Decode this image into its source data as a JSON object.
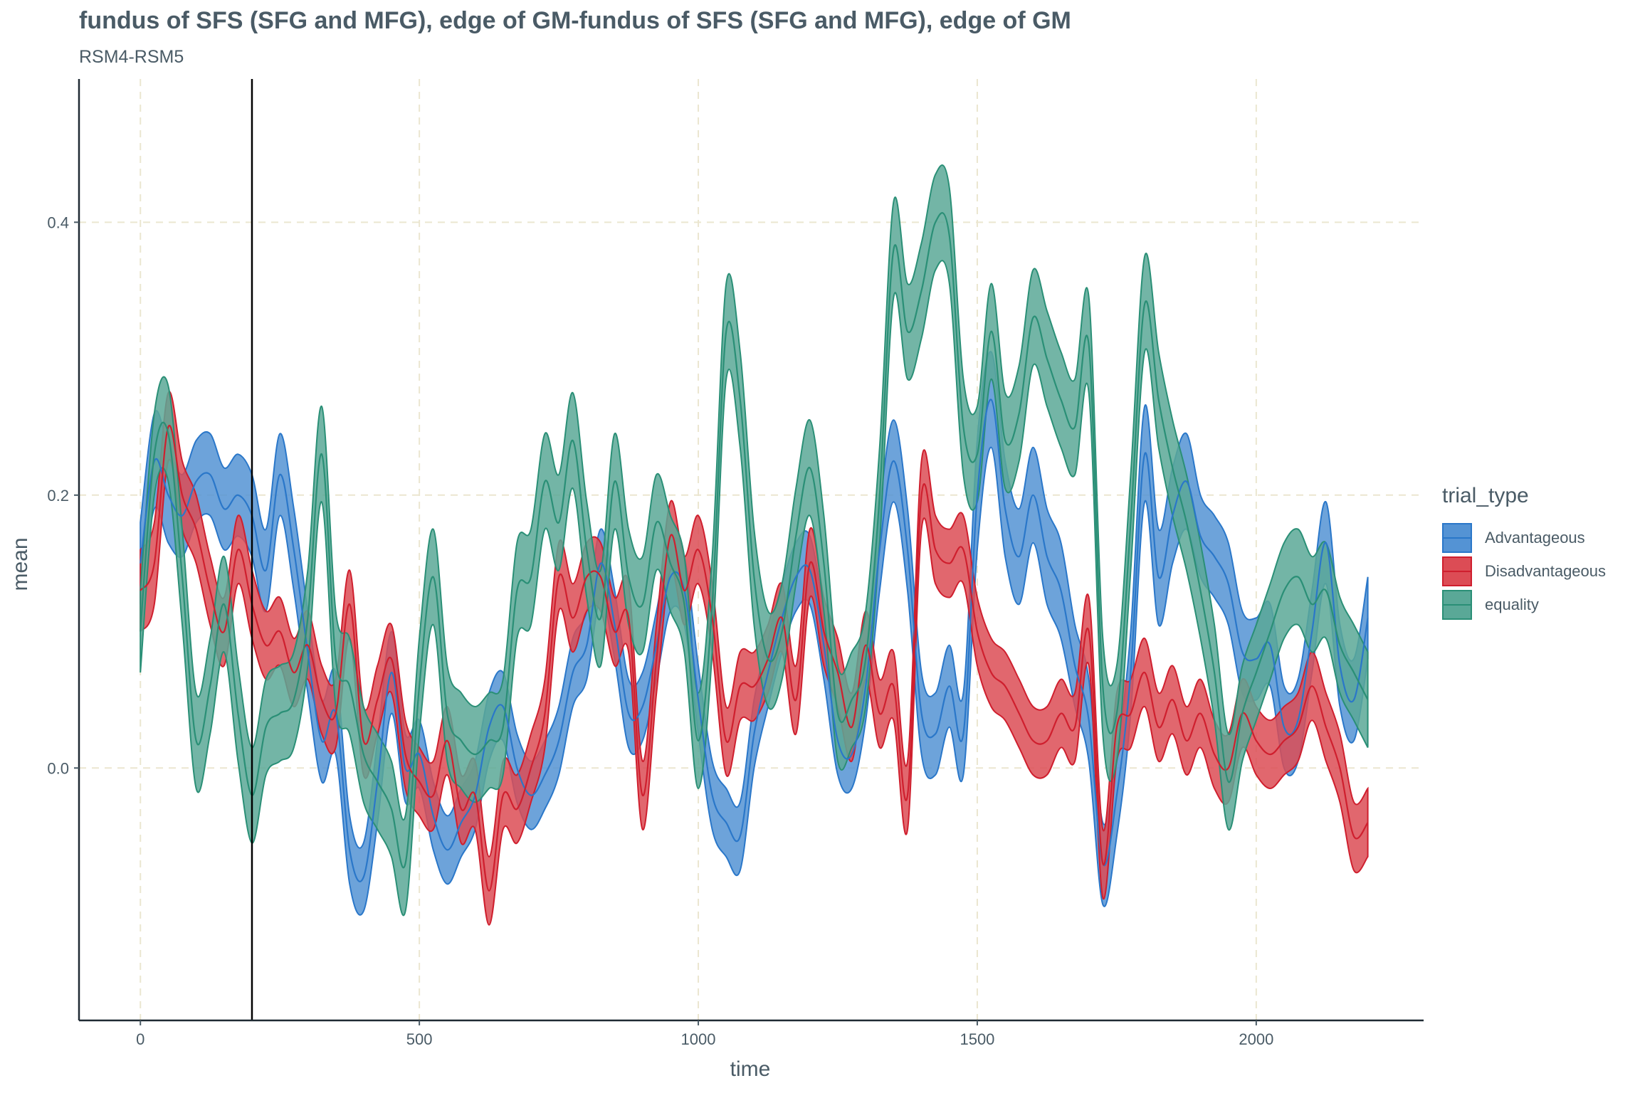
{
  "title": "fundus of SFS (SFG and MFG), edge of GM-fundus of SFS (SFG and MFG), edge of GM",
  "subtitle": "RSM4-RSM5",
  "chart_data": {
    "type": "area",
    "xlabel": "time",
    "ylabel": "mean",
    "xlim": [
      -110,
      2300
    ],
    "ylim": [
      -0.185,
      0.505
    ],
    "x_ticks": [
      0,
      500,
      1000,
      1500,
      2000
    ],
    "y_ticks": [
      0.0,
      0.2,
      0.4
    ],
    "x_tick_labels": [
      "0",
      "500",
      "1000",
      "1500",
      "2000"
    ],
    "y_tick_labels": [
      "0.0",
      "0.2",
      "0.4"
    ],
    "vline_x": 200,
    "grid": true,
    "legend_title": "trial_type",
    "legend_position": "right",
    "x": [
      0,
      25,
      50,
      75,
      100,
      125,
      150,
      175,
      200,
      225,
      250,
      275,
      300,
      325,
      350,
      375,
      400,
      425,
      450,
      475,
      500,
      525,
      550,
      575,
      600,
      625,
      650,
      675,
      700,
      725,
      750,
      775,
      800,
      825,
      850,
      875,
      900,
      925,
      950,
      975,
      1000,
      1025,
      1050,
      1075,
      1100,
      1125,
      1150,
      1175,
      1200,
      1225,
      1250,
      1275,
      1300,
      1325,
      1350,
      1375,
      1400,
      1425,
      1450,
      1475,
      1500,
      1525,
      1550,
      1575,
      1600,
      1625,
      1650,
      1675,
      1700,
      1725,
      1750,
      1775,
      1800,
      1825,
      1850,
      1875,
      1900,
      1925,
      1950,
      1975,
      2000,
      2025,
      2050,
      2075,
      2100,
      2125,
      2150,
      2175,
      2200
    ],
    "series": [
      {
        "name": "Advantageous",
        "color": "#2a77c9",
        "fill": "#5493d4",
        "mean": [
          0.15,
          0.225,
          0.2,
          0.185,
          0.21,
          0.215,
          0.19,
          0.2,
          0.185,
          0.145,
          0.215,
          0.16,
          0.085,
          0.02,
          0.04,
          -0.06,
          -0.08,
          -0.01,
          0.07,
          0.0,
          0.01,
          -0.035,
          -0.06,
          -0.04,
          -0.02,
          0.03,
          0.045,
          0.0,
          -0.02,
          -0.005,
          0.02,
          0.07,
          0.09,
          0.15,
          0.105,
          0.04,
          0.045,
          0.09,
          0.14,
          0.13,
          0.05,
          -0.02,
          -0.04,
          -0.05,
          0.025,
          0.07,
          0.11,
          0.14,
          0.145,
          0.09,
          0.02,
          0.01,
          0.06,
          0.16,
          0.225,
          0.16,
          0.04,
          0.025,
          0.06,
          0.025,
          0.2,
          0.27,
          0.19,
          0.155,
          0.2,
          0.155,
          0.13,
          0.075,
          0.035,
          -0.07,
          -0.02,
          0.07,
          0.23,
          0.14,
          0.185,
          0.21,
          0.17,
          0.155,
          0.135,
          0.085,
          0.08,
          0.09,
          0.03,
          0.035,
          0.1,
          0.165,
          0.075,
          0.05,
          0.11
        ],
        "upper": [
          0.18,
          0.26,
          0.235,
          0.215,
          0.24,
          0.245,
          0.22,
          0.23,
          0.215,
          0.175,
          0.245,
          0.19,
          0.115,
          0.05,
          0.07,
          -0.035,
          -0.055,
          0.02,
          0.1,
          0.025,
          0.035,
          -0.01,
          -0.035,
          -0.015,
          0.005,
          0.055,
          0.07,
          0.025,
          0.005,
          0.02,
          0.045,
          0.095,
          0.115,
          0.175,
          0.13,
          0.065,
          0.07,
          0.115,
          0.165,
          0.155,
          0.075,
          0.005,
          -0.015,
          -0.025,
          0.05,
          0.095,
          0.135,
          0.165,
          0.17,
          0.115,
          0.045,
          0.035,
          0.085,
          0.19,
          0.255,
          0.19,
          0.07,
          0.055,
          0.09,
          0.055,
          0.24,
          0.305,
          0.225,
          0.19,
          0.235,
          0.19,
          0.165,
          0.105,
          0.065,
          -0.04,
          0.01,
          0.1,
          0.265,
          0.175,
          0.22,
          0.245,
          0.2,
          0.185,
          0.165,
          0.115,
          0.11,
          0.12,
          0.06,
          0.065,
          0.13,
          0.195,
          0.105,
          0.08,
          0.14
        ],
        "lower": [
          0.12,
          0.19,
          0.165,
          0.155,
          0.18,
          0.185,
          0.16,
          0.17,
          0.155,
          0.115,
          0.185,
          0.13,
          0.055,
          -0.01,
          0.01,
          -0.085,
          -0.105,
          -0.04,
          0.04,
          -0.025,
          -0.015,
          -0.06,
          -0.085,
          -0.065,
          -0.045,
          0.005,
          0.02,
          -0.025,
          -0.045,
          -0.03,
          -0.005,
          0.045,
          0.065,
          0.125,
          0.08,
          0.015,
          0.02,
          0.065,
          0.115,
          0.105,
          0.025,
          -0.045,
          -0.065,
          -0.075,
          0.0,
          0.045,
          0.085,
          0.115,
          0.12,
          0.065,
          -0.005,
          -0.015,
          0.035,
          0.13,
          0.195,
          0.13,
          0.01,
          -0.005,
          0.03,
          -0.005,
          0.16,
          0.235,
          0.155,
          0.12,
          0.165,
          0.12,
          0.095,
          0.045,
          0.005,
          -0.1,
          -0.05,
          0.04,
          0.195,
          0.105,
          0.15,
          0.175,
          0.14,
          0.125,
          0.105,
          0.055,
          0.05,
          0.06,
          0.0,
          0.005,
          0.07,
          0.135,
          0.045,
          0.02,
          0.08
        ]
      },
      {
        "name": "Disadvantageous",
        "color": "#cf1f2e",
        "fill": "#dc4c55",
        "mean": [
          0.13,
          0.15,
          0.25,
          0.2,
          0.175,
          0.13,
          0.1,
          0.16,
          0.12,
          0.09,
          0.1,
          0.07,
          0.09,
          0.05,
          0.04,
          0.12,
          0.02,
          0.05,
          0.08,
          0.01,
          -0.01,
          -0.02,
          0.02,
          -0.03,
          -0.02,
          -0.09,
          -0.02,
          -0.03,
          0.0,
          0.04,
          0.14,
          0.11,
          0.14,
          0.14,
          0.1,
          0.11,
          -0.02,
          0.08,
          0.17,
          0.13,
          0.16,
          0.11,
          0.02,
          0.06,
          0.06,
          0.08,
          0.11,
          0.05,
          0.15,
          0.1,
          0.07,
          0.03,
          0.09,
          0.04,
          0.06,
          -0.02,
          0.2,
          0.16,
          0.15,
          0.16,
          0.1,
          0.07,
          0.06,
          0.04,
          0.02,
          0.02,
          0.04,
          0.03,
          0.1,
          -0.07,
          0.03,
          0.04,
          0.07,
          0.03,
          0.05,
          0.02,
          0.04,
          0.01,
          0.0,
          0.04,
          0.02,
          0.01,
          0.02,
          0.03,
          0.06,
          0.03,
          0.0,
          -0.05,
          -0.04
        ],
        "upper": [
          0.16,
          0.18,
          0.275,
          0.225,
          0.2,
          0.155,
          0.125,
          0.185,
          0.145,
          0.115,
          0.125,
          0.095,
          0.115,
          0.075,
          0.065,
          0.145,
          0.045,
          0.075,
          0.105,
          0.035,
          0.015,
          0.005,
          0.045,
          -0.005,
          0.005,
          -0.065,
          0.005,
          -0.005,
          0.025,
          0.065,
          0.165,
          0.135,
          0.165,
          0.165,
          0.125,
          0.135,
          0.005,
          0.105,
          0.195,
          0.155,
          0.185,
          0.135,
          0.045,
          0.085,
          0.085,
          0.105,
          0.135,
          0.075,
          0.175,
          0.125,
          0.095,
          0.055,
          0.115,
          0.065,
          0.085,
          0.005,
          0.225,
          0.185,
          0.175,
          0.185,
          0.125,
          0.095,
          0.085,
          0.065,
          0.045,
          0.045,
          0.065,
          0.055,
          0.125,
          -0.045,
          0.055,
          0.065,
          0.095,
          0.055,
          0.075,
          0.045,
          0.065,
          0.035,
          0.025,
          0.065,
          0.045,
          0.035,
          0.045,
          0.055,
          0.085,
          0.055,
          0.025,
          -0.025,
          -0.015
        ],
        "lower": [
          0.1,
          0.12,
          0.225,
          0.175,
          0.15,
          0.105,
          0.075,
          0.135,
          0.095,
          0.065,
          0.075,
          0.045,
          0.065,
          0.025,
          0.015,
          0.095,
          -0.005,
          0.025,
          0.055,
          -0.015,
          -0.035,
          -0.045,
          -0.005,
          -0.055,
          -0.045,
          -0.115,
          -0.045,
          -0.055,
          -0.025,
          0.015,
          0.115,
          0.085,
          0.115,
          0.115,
          0.075,
          0.085,
          -0.045,
          0.055,
          0.145,
          0.105,
          0.135,
          0.085,
          -0.005,
          0.035,
          0.035,
          0.055,
          0.085,
          0.025,
          0.125,
          0.075,
          0.045,
          0.005,
          0.065,
          0.015,
          0.035,
          -0.045,
          0.175,
          0.135,
          0.125,
          0.135,
          0.075,
          0.045,
          0.035,
          0.015,
          -0.005,
          -0.005,
          0.015,
          0.005,
          0.075,
          -0.095,
          0.005,
          0.015,
          0.045,
          0.005,
          0.025,
          -0.005,
          0.015,
          -0.015,
          -0.025,
          0.015,
          -0.005,
          -0.015,
          -0.005,
          0.005,
          0.035,
          0.005,
          -0.025,
          -0.075,
          -0.065
        ]
      },
      {
        "name": "equality",
        "color": "#2a8f76",
        "fill": "#5aa897",
        "mean": [
          0.1,
          0.23,
          0.245,
          0.14,
          0.02,
          0.06,
          0.12,
          0.04,
          -0.02,
          0.03,
          0.04,
          0.05,
          0.11,
          0.23,
          0.08,
          0.06,
          0.01,
          -0.01,
          -0.03,
          -0.07,
          0.06,
          0.14,
          0.04,
          0.02,
          0.01,
          0.02,
          0.03,
          0.13,
          0.14,
          0.21,
          0.18,
          0.24,
          0.16,
          0.11,
          0.21,
          0.14,
          0.12,
          0.18,
          0.15,
          0.12,
          0.02,
          0.12,
          0.32,
          0.27,
          0.14,
          0.08,
          0.1,
          0.17,
          0.22,
          0.15,
          0.04,
          0.05,
          0.08,
          0.2,
          0.38,
          0.32,
          0.35,
          0.4,
          0.39,
          0.25,
          0.23,
          0.32,
          0.24,
          0.26,
          0.33,
          0.3,
          0.27,
          0.25,
          0.31,
          0.06,
          0.04,
          0.18,
          0.34,
          0.27,
          0.22,
          0.18,
          0.13,
          0.07,
          -0.01,
          0.04,
          0.07,
          0.1,
          0.13,
          0.14,
          0.12,
          0.13,
          0.09,
          0.07,
          0.05
        ],
        "upper": [
          0.13,
          0.26,
          0.28,
          0.175,
          0.055,
          0.095,
          0.155,
          0.075,
          0.015,
          0.065,
          0.075,
          0.085,
          0.145,
          0.265,
          0.115,
          0.095,
          0.045,
          0.025,
          0.005,
          -0.035,
          0.095,
          0.175,
          0.075,
          0.055,
          0.045,
          0.055,
          0.065,
          0.165,
          0.175,
          0.245,
          0.215,
          0.275,
          0.195,
          0.145,
          0.245,
          0.175,
          0.155,
          0.215,
          0.185,
          0.155,
          0.055,
          0.155,
          0.355,
          0.305,
          0.175,
          0.115,
          0.135,
          0.205,
          0.255,
          0.185,
          0.075,
          0.085,
          0.115,
          0.235,
          0.415,
          0.355,
          0.385,
          0.435,
          0.425,
          0.285,
          0.265,
          0.355,
          0.275,
          0.295,
          0.365,
          0.335,
          0.305,
          0.285,
          0.345,
          0.095,
          0.075,
          0.215,
          0.375,
          0.305,
          0.255,
          0.215,
          0.165,
          0.105,
          0.025,
          0.075,
          0.105,
          0.135,
          0.165,
          0.175,
          0.155,
          0.165,
          0.125,
          0.105,
          0.085
        ],
        "lower": [
          0.07,
          0.2,
          0.21,
          0.105,
          -0.015,
          0.025,
          0.085,
          0.005,
          -0.055,
          -0.005,
          0.005,
          0.015,
          0.075,
          0.195,
          0.045,
          0.025,
          -0.025,
          -0.045,
          -0.065,
          -0.105,
          0.025,
          0.105,
          0.005,
          -0.015,
          -0.025,
          -0.015,
          -0.005,
          0.095,
          0.105,
          0.175,
          0.145,
          0.205,
          0.125,
          0.075,
          0.175,
          0.105,
          0.085,
          0.145,
          0.115,
          0.085,
          -0.015,
          0.085,
          0.285,
          0.235,
          0.105,
          0.045,
          0.065,
          0.135,
          0.185,
          0.115,
          0.005,
          0.015,
          0.045,
          0.165,
          0.345,
          0.285,
          0.315,
          0.365,
          0.355,
          0.215,
          0.195,
          0.285,
          0.205,
          0.225,
          0.295,
          0.265,
          0.235,
          0.215,
          0.275,
          0.025,
          0.005,
          0.145,
          0.305,
          0.235,
          0.185,
          0.145,
          0.095,
          0.035,
          -0.045,
          0.005,
          0.035,
          0.065,
          0.095,
          0.105,
          0.085,
          0.095,
          0.055,
          0.035,
          0.015
        ]
      }
    ]
  }
}
